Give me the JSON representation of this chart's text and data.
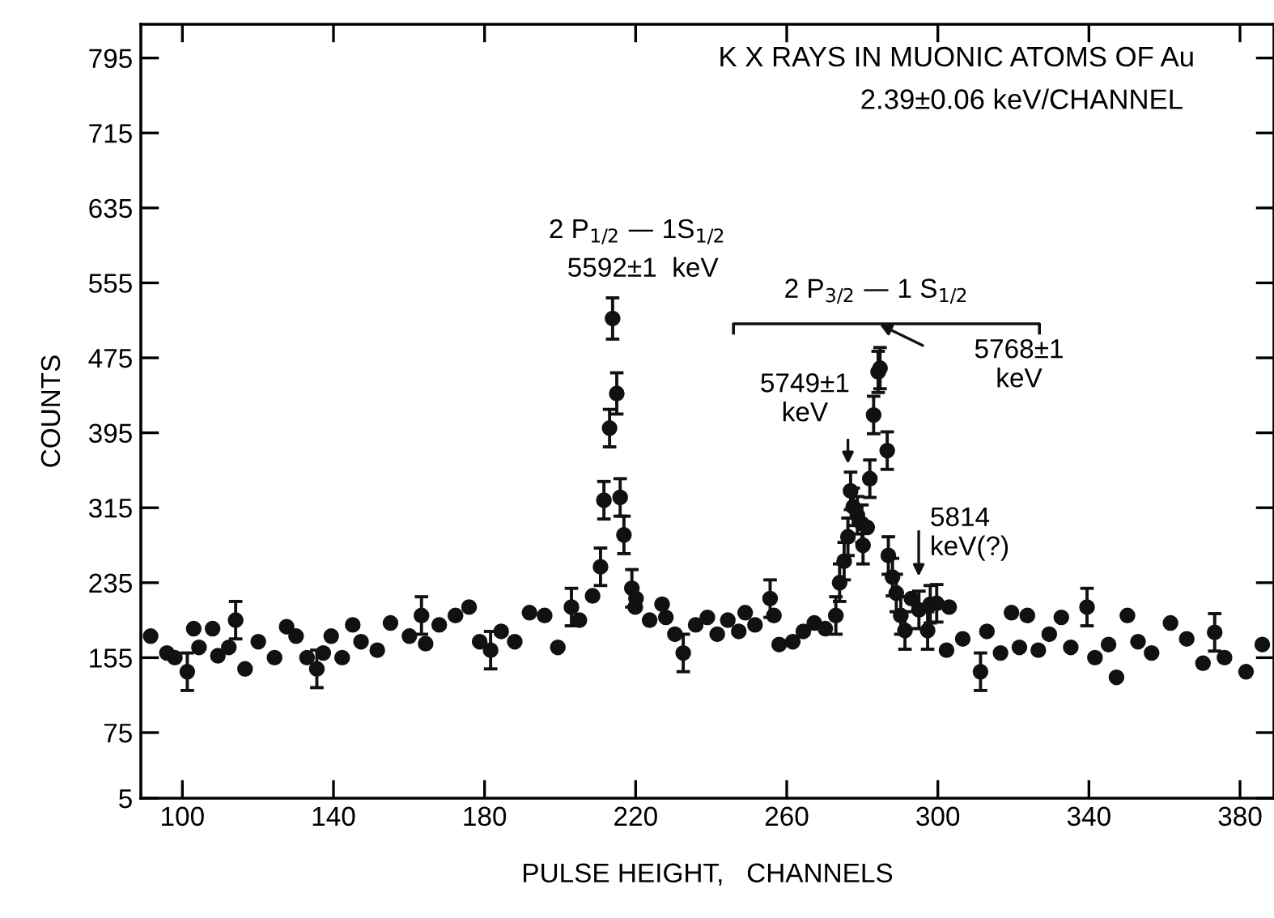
{
  "chart_data": {
    "type": "scatter",
    "title": "K X RAYS IN MUONIC ATOMS OF Au",
    "subtitle": "2.39±0.06 keV/CHANNEL",
    "xlabel": "PULSE HEIGHT,   CHANNELS",
    "ylabel": "COUNTS",
    "xlim": [
      89,
      389
    ],
    "xticks": [
      100,
      140,
      180,
      220,
      260,
      300,
      340,
      380
    ],
    "ylim": [
      5,
      831
    ],
    "yticks": [
      5,
      75,
      155,
      235,
      315,
      395,
      475,
      555,
      635,
      715,
      795
    ],
    "grid": false,
    "marker": "circle",
    "series": [
      {
        "color": "#111111",
        "x": [
          91.6,
          95.9,
          98,
          101.3,
          103,
          104.4,
          108,
          109.4,
          112.3,
          114.1,
          116.6,
          120.1,
          124.4,
          127.6,
          130.1,
          133,
          135.6,
          137.3,
          139.4,
          142.3,
          145.1,
          147.3,
          151.6,
          155.1,
          160.1,
          163.3,
          164.4,
          168,
          172.3,
          175.9,
          178.7,
          181.6,
          184.4,
          188,
          191.9,
          195.9,
          199.4,
          203,
          205.1,
          208.6,
          210.7,
          211.6,
          213.1,
          213.9,
          215,
          215.9,
          216.9,
          219,
          219.9,
          220.1,
          223.7,
          227,
          228,
          230.4,
          232.6,
          235.9,
          239,
          241.6,
          244.4,
          247.3,
          249,
          251.6,
          255.6,
          256.6,
          258,
          261.6,
          264.4,
          267.3,
          270.2,
          273,
          274,
          275.2,
          276.2,
          276.9,
          277.6,
          278.7,
          279.9,
          280.2,
          281.3,
          282,
          283,
          284.2,
          284.7,
          286.6,
          286.9,
          288,
          289,
          290.2,
          291.3,
          293,
          295,
          297.3,
          298,
          299.7,
          302.3,
          303,
          306.6,
          311.3,
          313,
          316.6,
          319.5,
          321.6,
          323.7,
          326.6,
          329.5,
          332.7,
          335.2,
          339.5,
          341.6,
          345.2,
          347.3,
          350.2,
          353,
          356.6,
          361.6,
          365.9,
          370.2,
          373.3,
          375.9,
          381.6,
          385.9
        ],
        "values": [
          178,
          160,
          155,
          140,
          186,
          166,
          186,
          157,
          166,
          195,
          143,
          172,
          155,
          188,
          178,
          155,
          143,
          160,
          178,
          155,
          190,
          172,
          163,
          192,
          178,
          200,
          170,
          190,
          200,
          209,
          172,
          163,
          183,
          172,
          203,
          200,
          166,
          209,
          195,
          221,
          252,
          323,
          400,
          517,
          437,
          326,
          286,
          229,
          209,
          218,
          195,
          212,
          198,
          180,
          160,
          190,
          198,
          180,
          195,
          183,
          203,
          190,
          218,
          200,
          169,
          172,
          183,
          192,
          186,
          200,
          235,
          258,
          284,
          333,
          316,
          307,
          298,
          275,
          294,
          346,
          414,
          460,
          464,
          376,
          264,
          241,
          224,
          200,
          184,
          218,
          206,
          184,
          212,
          213,
          163,
          209,
          175,
          140,
          183,
          160,
          203,
          166,
          200,
          163,
          180,
          198,
          166,
          209,
          155,
          169,
          134,
          200,
          172,
          160,
          192,
          175,
          149,
          182,
          155,
          140,
          169
        ],
        "errors": [
          null,
          null,
          null,
          20,
          null,
          null,
          null,
          null,
          null,
          20,
          null,
          null,
          null,
          null,
          null,
          null,
          20,
          null,
          null,
          null,
          null,
          null,
          null,
          null,
          null,
          20,
          null,
          null,
          null,
          null,
          null,
          20,
          null,
          null,
          null,
          null,
          null,
          20,
          null,
          null,
          20,
          20,
          20,
          22,
          22,
          20,
          20,
          20,
          null,
          null,
          null,
          null,
          null,
          null,
          20,
          null,
          null,
          null,
          null,
          null,
          null,
          null,
          20,
          null,
          null,
          null,
          null,
          null,
          null,
          20,
          20,
          20,
          20,
          20,
          20,
          20,
          20,
          20,
          null,
          20,
          20,
          22,
          22,
          20,
          20,
          20,
          20,
          20,
          20,
          null,
          20,
          20,
          20,
          20,
          null,
          null,
          null,
          20,
          null,
          null,
          null,
          null,
          null,
          null,
          null,
          null,
          null,
          20,
          null,
          null,
          null,
          null,
          null,
          null,
          null,
          null,
          null,
          20,
          null,
          null,
          null
        ]
      }
    ],
    "annotations": [
      "2 P$_{1/2}$ — 1S$_{1/2}$",
      "5592±1  keV",
      "2 P$_{3/2}$ — 1 S$_{1/2}$",
      "5749±1\nkeV",
      "5768±1\nkeV",
      {
        "text": "5814\nkeV(?)",
        "x": 299.7,
        "y": 213
      }
    ]
  }
}
